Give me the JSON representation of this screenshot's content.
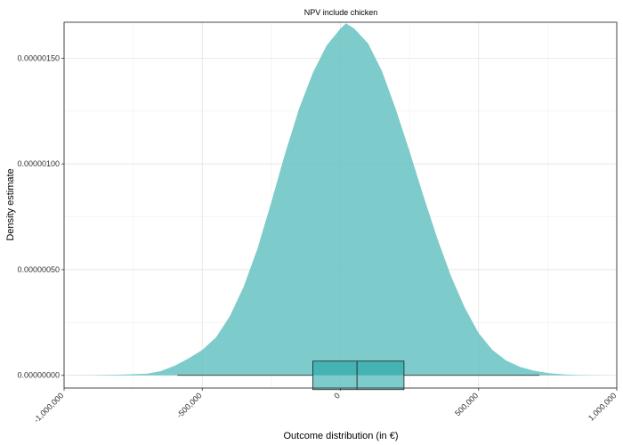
{
  "chart_data": {
    "type": "area",
    "title": "NPV include chicken",
    "xlabel": "Outcome distribution (in €)",
    "ylabel": "Density estimate",
    "xlim": [
      -1000000,
      1000000
    ],
    "ylim": [
      -6e-08,
      1.67e-06
    ],
    "x_ticks": [
      -1000000,
      -500000,
      0,
      500000,
      1000000
    ],
    "x_tick_labels": [
      "-1,000,000",
      "-500,000",
      "0",
      "500,000",
      "1,000,000"
    ],
    "y_ticks": [
      0,
      5e-07,
      1e-06,
      1.5e-06
    ],
    "y_tick_labels": [
      "0.00000000",
      "0.00000050",
      "0.00000100",
      "0.00000150"
    ],
    "grid": true,
    "colors": {
      "density_fill": "#66c2c2",
      "box_fill": "#3fb0b0",
      "box_stroke": "#222222"
    },
    "series": [
      {
        "x": [
          -990000,
          -900000,
          -800000,
          -700000,
          -650000,
          -600000,
          -550000,
          -500000,
          -450000,
          -400000,
          -350000,
          -300000,
          -250000,
          -200000,
          -150000,
          -100000,
          -50000,
          0,
          20000,
          50000,
          100000,
          150000,
          200000,
          250000,
          300000,
          350000,
          400000,
          450000,
          500000,
          550000,
          600000,
          650000,
          700000,
          750000,
          800000,
          850000,
          900000,
          950000,
          990000
        ],
        "y": [
          5e-10,
          1e-09,
          3e-09,
          8e-09,
          2e-08,
          4.5e-08,
          8e-08,
          1.2e-07,
          1.8e-07,
          2.8e-07,
          4.2e-07,
          6e-07,
          8.2e-07,
          1.05e-06,
          1.26e-06,
          1.43e-06,
          1.56e-06,
          1.64e-06,
          1.665e-06,
          1.64e-06,
          1.57e-06,
          1.44e-06,
          1.26e-06,
          1.06e-06,
          8.5e-07,
          6.5e-07,
          4.7e-07,
          3.2e-07,
          2e-07,
          1.2e-07,
          7e-08,
          4e-08,
          2.2e-08,
          1.1e-08,
          5e-09,
          2e-09,
          1e-09,
          5e-10,
          1e-10
        ]
      }
    ],
    "boxplot": {
      "q1": -100000,
      "median": 60000,
      "q3": 230000,
      "whisker_low": -590000,
      "whisker_high": 720000
    }
  }
}
